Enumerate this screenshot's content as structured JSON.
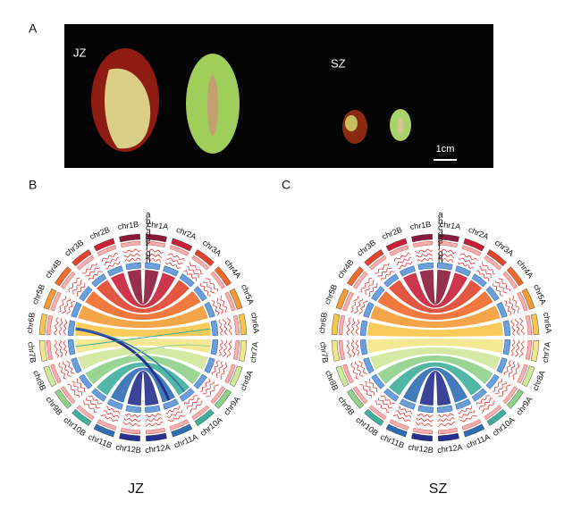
{
  "panels": {
    "a": {
      "label": "A",
      "left_label": "JZ",
      "right_label": "SZ",
      "scale_bar": "1cm"
    },
    "b": {
      "label": "B",
      "caption": "JZ"
    },
    "c": {
      "label": "C",
      "caption": "SZ"
    }
  },
  "chromosomes": [
    "chr1A",
    "chr2A",
    "chr3A",
    "chr4A",
    "chr5A",
    "chr6A",
    "chr7A",
    "chr8A",
    "chr9A",
    "chr10A",
    "chr11A",
    "chr12A",
    "chr12B",
    "chr11B",
    "chr10B",
    "chr9B",
    "chr8B",
    "chr7B",
    "chr6B",
    "chr5B",
    "chr4B",
    "chr3B",
    "chr2B",
    "chr1B"
  ],
  "tracks": [
    "a",
    "b",
    "c",
    "d",
    "e",
    "f",
    "g",
    "h"
  ]
}
